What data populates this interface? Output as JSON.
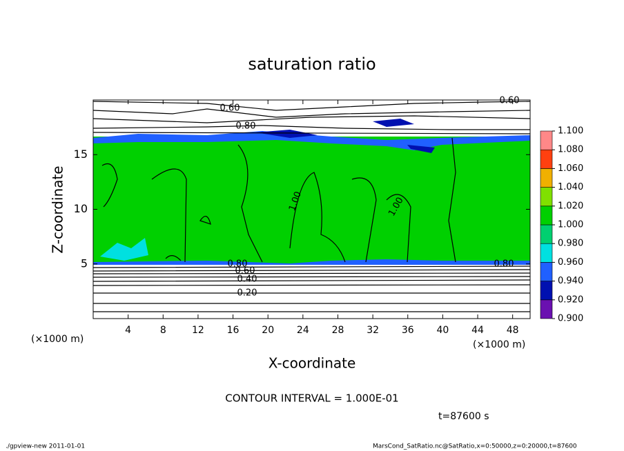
{
  "chart_data": {
    "type": "contour",
    "title": "saturation ratio",
    "x_label": "X-coordinate",
    "y_label": "Z-coordinate",
    "x_unit_left": "(×1000 m)",
    "x_unit_right": "(×1000 m)",
    "xlim": [
      0,
      50
    ],
    "xticks": [
      4,
      8,
      12,
      16,
      20,
      24,
      28,
      32,
      36,
      40,
      44,
      48
    ],
    "ylim": [
      0,
      20
    ],
    "yticks": [
      5,
      10,
      15
    ],
    "colorbar": {
      "levels": [
        {
          "value": 0.9,
          "label": "0.900"
        },
        {
          "value": 0.92,
          "label": "0.920"
        },
        {
          "value": 0.94,
          "label": "0.940"
        },
        {
          "value": 0.96,
          "label": "0.960"
        },
        {
          "value": 0.98,
          "label": "0.980"
        },
        {
          "value": 1.0,
          "label": "1.000"
        },
        {
          "value": 1.02,
          "label": "1.020"
        },
        {
          "value": 1.04,
          "label": "1.040"
        },
        {
          "value": 1.06,
          "label": "1.060"
        },
        {
          "value": 1.08,
          "label": "1.080"
        },
        {
          "value": 1.1,
          "label": "1.100"
        }
      ],
      "colors": [
        "#6a10b0",
        "#0010b0",
        "#2060ff",
        "#00e0e0",
        "#00d070",
        "#00d000",
        "#80e000",
        "#f0b000",
        "#ff4010",
        "#ff8888"
      ]
    },
    "contour_labels": [
      {
        "value": 0.6,
        "label": "0.60"
      },
      {
        "value": 0.6,
        "label": "0.60"
      },
      {
        "value": 0.8,
        "label": "0.80"
      },
      {
        "value": 1.0,
        "label": "1.00"
      },
      {
        "value": 1.0,
        "label": "1.00"
      },
      {
        "value": 0.8,
        "label": "0.80"
      },
      {
        "value": 0.6,
        "label": "0.60"
      },
      {
        "value": 0.4,
        "label": "0.40"
      },
      {
        "value": 0.2,
        "label": "0.20"
      },
      {
        "value": 0.8,
        "label": "0.80"
      }
    ],
    "contour_interval": "CONTOUR INTERVAL = 1.000E-01",
    "time_label": "t=87600 s",
    "footer_left": "./gpview-new  2011-01-01",
    "footer_right": "MarsCond_SatRatio.nc@SatRatio,x=0:50000,z=0:20000,t=87600"
  }
}
